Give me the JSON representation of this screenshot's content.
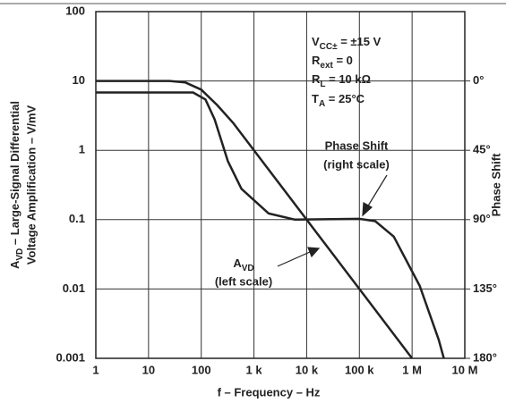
{
  "chart_data": {
    "type": "line",
    "xscale": "log",
    "yscale": "log",
    "grid": true,
    "xlim": [
      1,
      10000000
    ],
    "ylim": [
      0.001,
      100
    ],
    "y2lim": [
      180,
      -45
    ],
    "xticks": [
      1,
      10,
      100,
      {
        "value": 1000,
        "label": "1 k"
      },
      {
        "value": 10000,
        "label": "10 k"
      },
      {
        "value": 100000,
        "label": "100 k"
      },
      {
        "value": 1000000,
        "label": "1 M"
      },
      {
        "value": 10000000,
        "label": "10 M"
      }
    ],
    "yticks": [
      100,
      10,
      1,
      0.1,
      0.01,
      0.001
    ],
    "y2ticks": [
      {
        "value": 0,
        "label": "0°"
      },
      {
        "value": 45,
        "label": "45°"
      },
      {
        "value": 90,
        "label": "90°"
      },
      {
        "value": 135,
        "label": "135°"
      },
      {
        "value": 180,
        "label": "180°"
      }
    ],
    "xlabel": "f – Frequency – Hz",
    "ylabel": [
      {
        "main": "A",
        "sub": "VD",
        "rest": " – Large-Signal Differential"
      },
      "Voltage Amplification – V/mV"
    ],
    "y2label": "Phase Shift",
    "conditions": [
      {
        "main": "V",
        "sub": "CC±",
        "rest": " = ±15 V"
      },
      {
        "main": "R",
        "sub": "ext",
        "rest": " = 0"
      },
      {
        "main": "R",
        "sub": "L",
        "rest": " = 10 kΩ"
      },
      {
        "main": "T",
        "sub": "A",
        "rest": " = 25°C"
      }
    ],
    "phase_label": [
      "Phase Shift",
      "(right scale)"
    ],
    "gain_label": {
      "main": "A",
      "sub": "VD",
      "line2": "(left scale)"
    },
    "series": [
      {
        "color": "#222222",
        "axis": "y",
        "x": [
          1,
          25,
          50,
          100,
          200,
          400,
          1000,
          10000,
          100000,
          1000000
        ],
        "values": [
          10,
          10,
          9.5,
          7.5,
          4.5,
          2.5,
          1,
          0.1,
          0.01,
          0.001
        ]
      },
      {
        "color": "#222222",
        "axis": "y2",
        "x": [
          1,
          10,
          70,
          120,
          180,
          320,
          580,
          1900,
          6000,
          100000,
          200000,
          450000,
          1400000,
          3200000,
          4000000
        ],
        "values": [
          7.5,
          7.5,
          7.5,
          12,
          25,
          52,
          70,
          86,
          90,
          89.5,
          91,
          101,
          133,
          168,
          180
        ]
      }
    ]
  }
}
